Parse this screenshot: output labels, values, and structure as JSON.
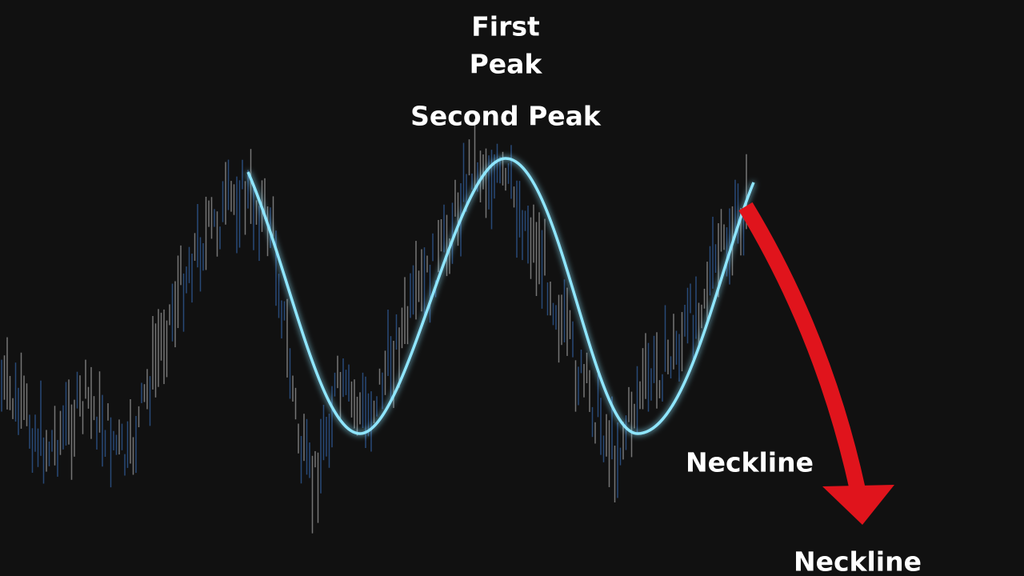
{
  "annotations": {
    "first_peak": [
      "First",
      "Peak"
    ],
    "second_peak": "Second Peak",
    "necklines": [
      "Neckline",
      "Neckline"
    ]
  }
}
